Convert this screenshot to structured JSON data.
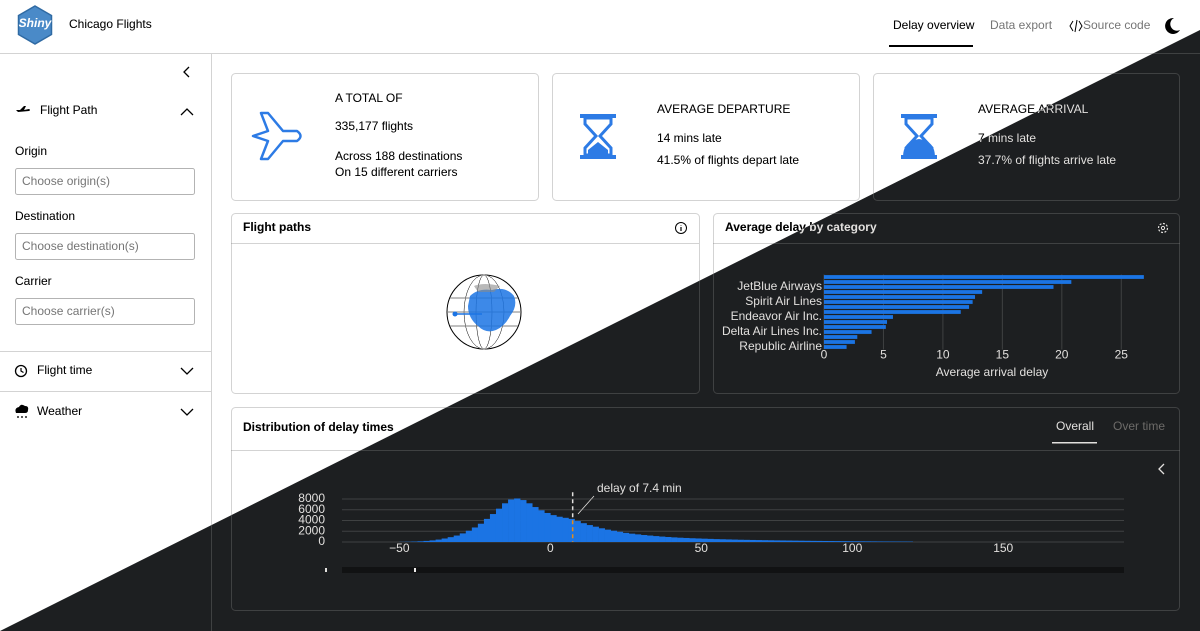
{
  "header": {
    "logo": "Shiny",
    "title": "Chicago Flights",
    "nav": [
      "Delay overview",
      "Data export",
      "Source code"
    ]
  },
  "sidebar": {
    "sections": [
      {
        "title": "Flight Path",
        "fields": [
          {
            "label": "Origin",
            "placeholder": "Choose origin(s)"
          },
          {
            "label": "Destination",
            "placeholder": "Choose destination(s)"
          },
          {
            "label": "Carrier",
            "placeholder": "Choose carrier(s)"
          }
        ]
      },
      {
        "title": "Flight time"
      },
      {
        "title": "Weather"
      }
    ]
  },
  "value_boxes": [
    {
      "title": "A TOTAL OF",
      "value": "335,177 flights",
      "lines": [
        "Across 188 destinations",
        "On 15 different carriers"
      ]
    },
    {
      "title": "AVERAGE DEPARTURE",
      "value": "14 mins late",
      "lines": [
        "41.5% of flights depart late"
      ]
    },
    {
      "title": "AVERAGE ARRIVAL",
      "value": "7 mins late",
      "lines": [
        "37.7% of flights arrive late"
      ]
    }
  ],
  "cards": {
    "flight_paths": {
      "title": "Flight paths"
    },
    "distribution": {
      "title": "Distribution of delay times",
      "tabs": [
        "Overall",
        "Over time"
      ]
    }
  },
  "chart_data": [
    {
      "type": "bar",
      "orientation": "horizontal",
      "title": "Average delay by category",
      "x_label": "Average arrival delay",
      "categories": [
        null,
        null,
        "JetBlue Airways",
        null,
        null,
        "Spirit Air Lines",
        null,
        null,
        "Endeavor Air Inc.",
        null,
        null,
        "Delta Air Lines Inc.",
        null,
        null,
        "Republic Airline"
      ],
      "values": [
        26.9,
        20.8,
        19.3,
        13.3,
        12.7,
        12.5,
        12.2,
        11.5,
        5.8,
        5.3,
        5.2,
        4.0,
        2.8,
        2.6,
        1.9
      ],
      "color": "#1b74e4",
      "xlim": [
        0,
        27.5
      ],
      "xticks": [
        0,
        5,
        10,
        15,
        20,
        25
      ],
      "grid": true
    },
    {
      "type": "histogram",
      "bins": [
        -50,
        -48,
        -46,
        -44,
        -42,
        -40,
        -38,
        -36,
        -34,
        -32,
        -30,
        -28,
        -26,
        -24,
        -22,
        -20,
        -18,
        -16,
        -14,
        -12,
        -10,
        -8,
        -6,
        -4,
        -2,
        0,
        2,
        4,
        6,
        8,
        10,
        12,
        14,
        16,
        18,
        20,
        22,
        24,
        26,
        28,
        30,
        32,
        34,
        36,
        38,
        40,
        42,
        44,
        46,
        48,
        50,
        52,
        54,
        56,
        58,
        60,
        62,
        64,
        66,
        68,
        70,
        72,
        74,
        76,
        78,
        80,
        82,
        84,
        86,
        88,
        90,
        92,
        94,
        96,
        98,
        100,
        102,
        104,
        106,
        108,
        110,
        112,
        114,
        116,
        118,
        120
      ],
      "values": [
        30,
        50,
        80,
        130,
        200,
        300,
        450,
        650,
        900,
        1200,
        1600,
        2100,
        2700,
        3400,
        4300,
        5200,
        6200,
        7200,
        7900,
        8100,
        7800,
        7200,
        6500,
        5900,
        5400,
        5000,
        4700,
        4500,
        4300,
        3900,
        3500,
        3150,
        2850,
        2550,
        2300,
        2100,
        1900,
        1700,
        1550,
        1420,
        1300,
        1200,
        1100,
        1010,
        930,
        860,
        800,
        750,
        700,
        660,
        620,
        580,
        540,
        510,
        480,
        450,
        420,
        400,
        380,
        360,
        340,
        320,
        300,
        285,
        270,
        255,
        240,
        225,
        210,
        200,
        190,
        180,
        170,
        160,
        150,
        140,
        130,
        120,
        110,
        100,
        95,
        90,
        85,
        80,
        75
      ],
      "color": "#1b74e4",
      "xlim": [
        -69,
        190
      ],
      "xticks": [
        {
          "value": -50,
          "label": "−50"
        },
        0,
        50,
        100,
        150
      ],
      "ylim": [
        0,
        8500
      ],
      "yticks": [
        0,
        2000,
        4000,
        6000,
        8000
      ],
      "grid": true,
      "reference_line": 7.4,
      "annotation": "delay of 7.4 min"
    }
  ]
}
